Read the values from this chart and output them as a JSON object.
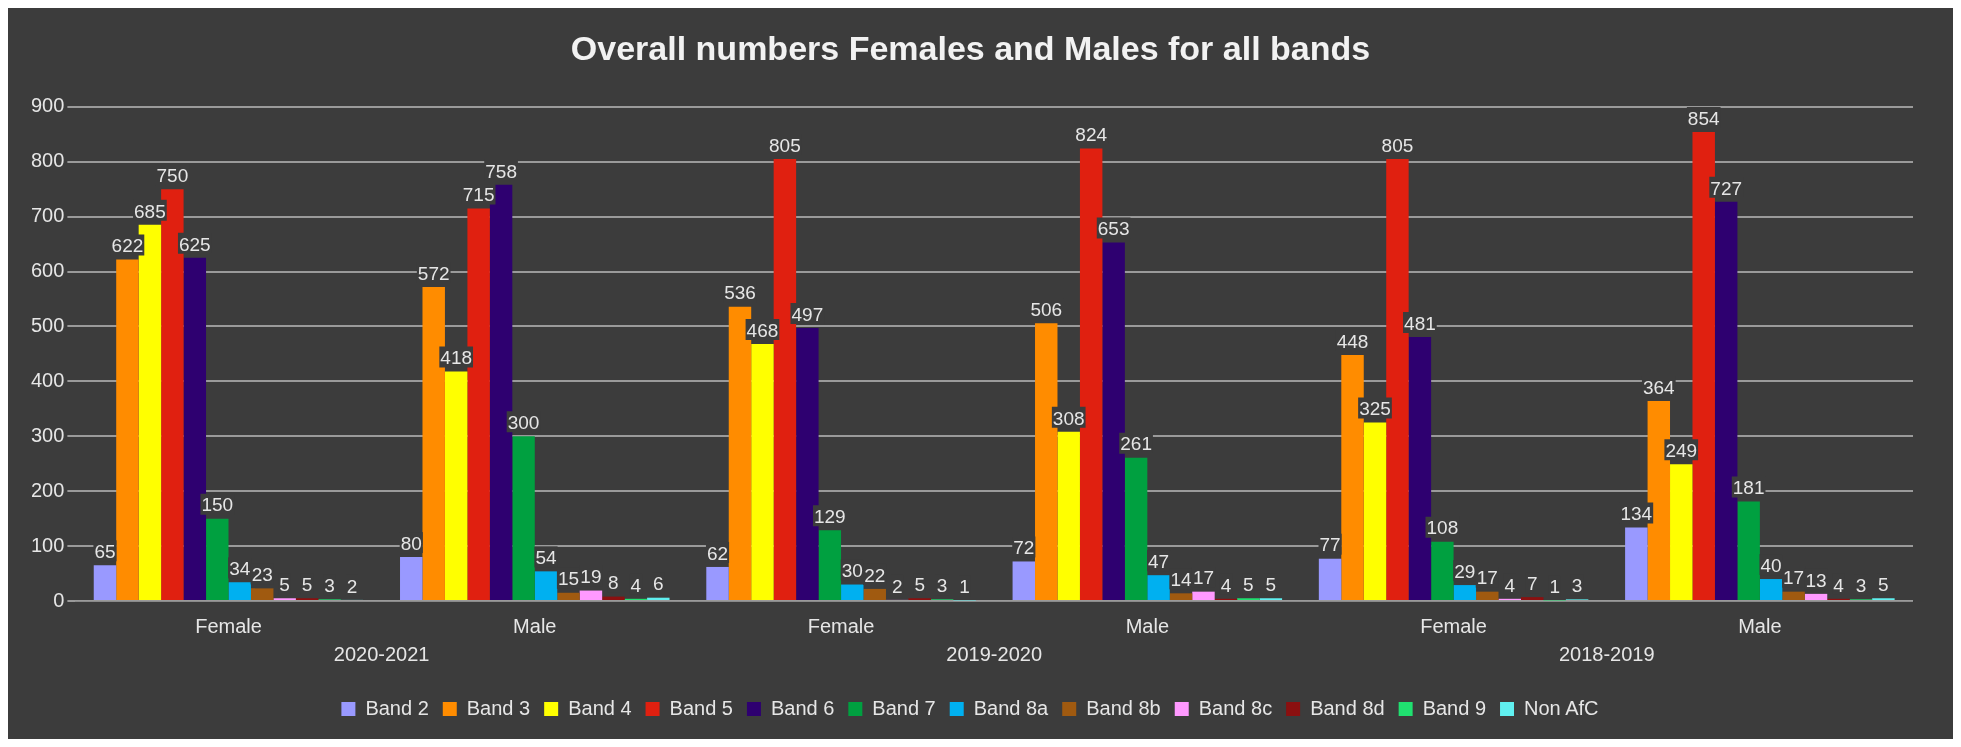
{
  "chart_data": {
    "type": "bar",
    "title": "Overall numbers Females and Males for all bands",
    "categories": [
      "Female",
      "Male",
      "Female",
      "Male",
      "Female",
      "Male"
    ],
    "annotations": [
      "2020-2021",
      "2019-2020",
      "2018-2019"
    ],
    "series": [
      {
        "name": "Band 2",
        "color": "#9999ff",
        "values": [
          65,
          80,
          62,
          72,
          77,
          134
        ]
      },
      {
        "name": "Band 3",
        "color": "#ff8c00",
        "values": [
          622,
          572,
          536,
          506,
          448,
          364
        ]
      },
      {
        "name": "Band 4",
        "color": "#ffff00",
        "values": [
          685,
          418,
          468,
          308,
          325,
          249
        ]
      },
      {
        "name": "Band 5",
        "color": "#e02010",
        "values": [
          750,
          715,
          805,
          824,
          805,
          854
        ]
      },
      {
        "name": "Band 6",
        "color": "#2e0070",
        "values": [
          625,
          758,
          497,
          653,
          481,
          727
        ]
      },
      {
        "name": "Band 7",
        "color": "#00a040",
        "values": [
          150,
          300,
          129,
          261,
          108,
          181
        ]
      },
      {
        "name": "Band 8a",
        "color": "#00b0f0",
        "values": [
          34,
          54,
          30,
          47,
          29,
          40
        ]
      },
      {
        "name": "Band 8b",
        "color": "#a05a10",
        "values": [
          23,
          15,
          22,
          14,
          17,
          17
        ]
      },
      {
        "name": "Band 8c",
        "color": "#ff99ff",
        "values": [
          5,
          19,
          2,
          17,
          4,
          13
        ]
      },
      {
        "name": "Band 8d",
        "color": "#8b1010",
        "values": [
          5,
          8,
          5,
          4,
          7,
          4
        ]
      },
      {
        "name": "Band 9",
        "color": "#20e070",
        "values": [
          3,
          4,
          3,
          5,
          1,
          3
        ]
      },
      {
        "name": "Non AfC",
        "color": "#60f0f0",
        "values": [
          2,
          6,
          1,
          5,
          3,
          5
        ]
      }
    ],
    "ylim": [
      0,
      900
    ],
    "yticks": [
      0,
      100,
      200,
      300,
      400,
      500,
      600,
      700,
      800,
      900
    ],
    "grid": "y",
    "legend": "bottom",
    "data_labels": true
  }
}
